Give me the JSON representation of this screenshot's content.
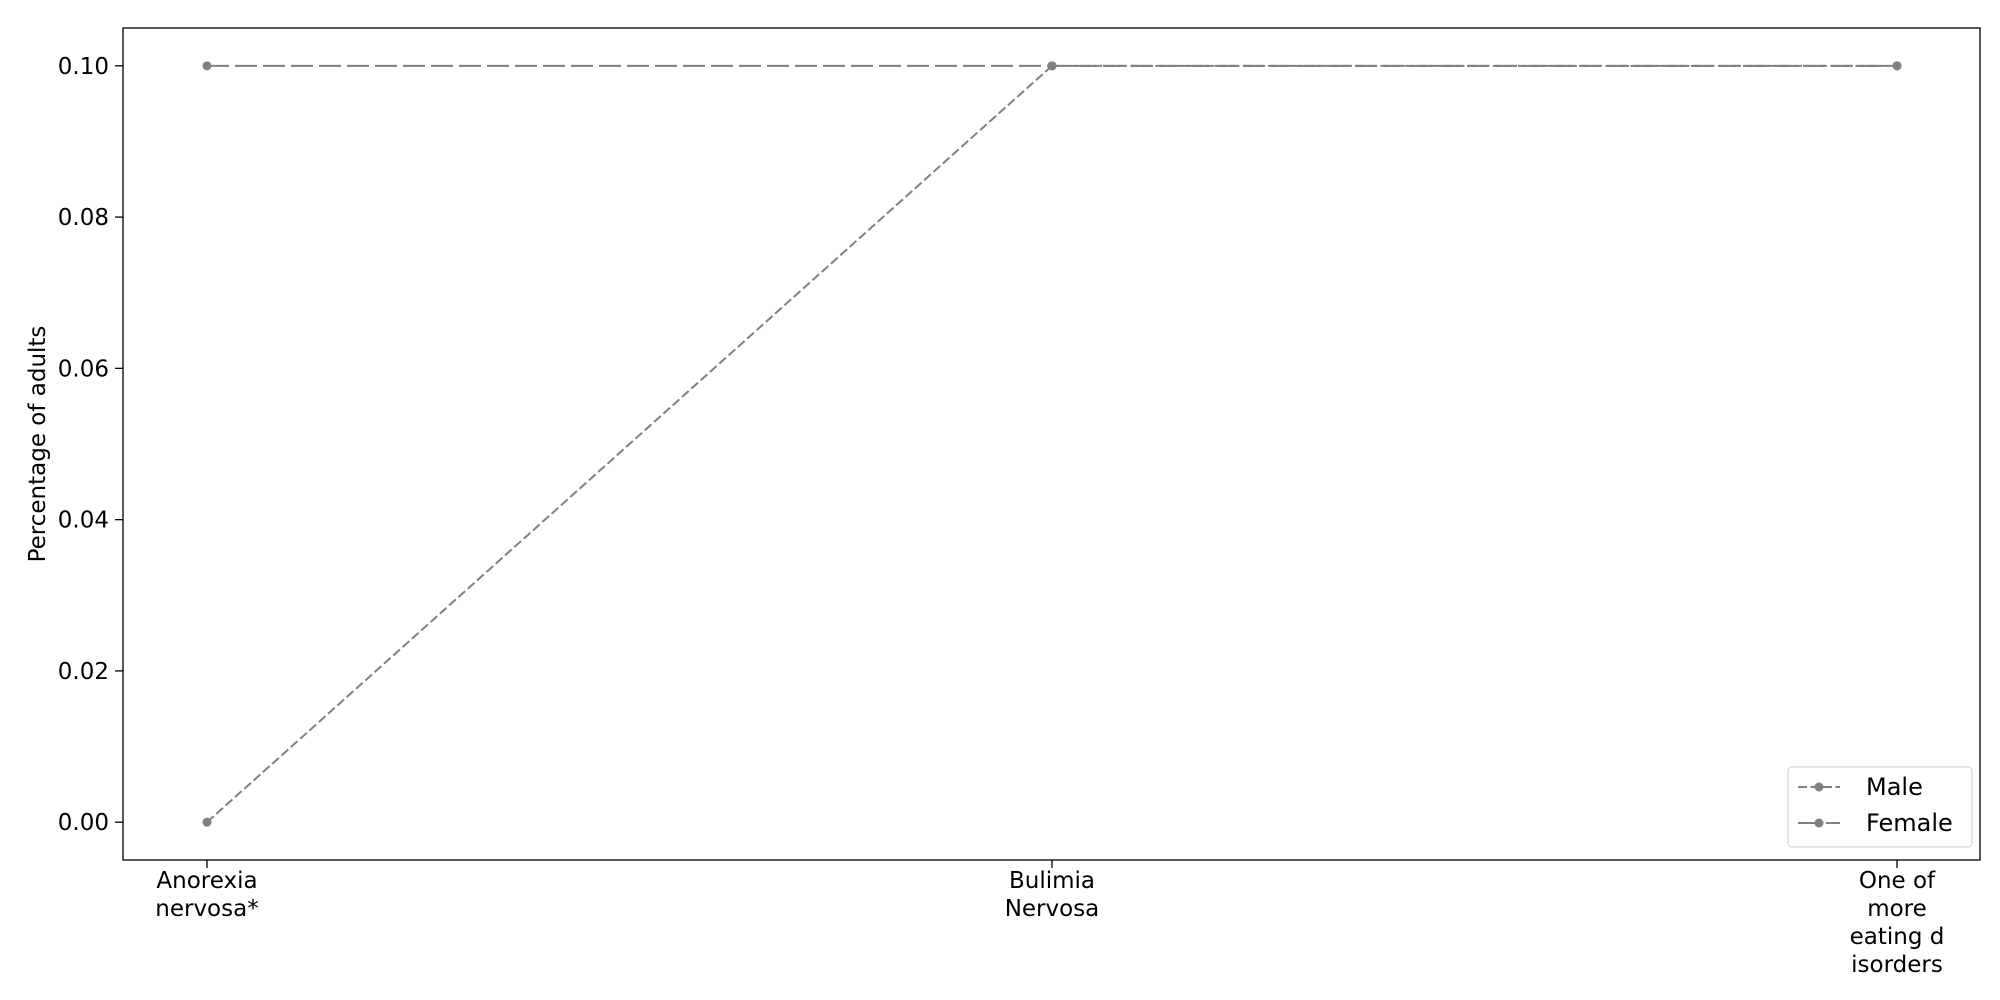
{
  "chart_data": {
    "type": "line",
    "title": "",
    "xlabel": "",
    "ylabel": "Percentage of adults",
    "categories": [
      [
        "Anorexia",
        "nervosa*"
      ],
      [
        "Bulimia",
        "Nervosa"
      ],
      [
        "One of",
        "more",
        "eating d",
        "isorders"
      ]
    ],
    "ylim": [
      -0.005,
      0.105
    ],
    "yticks": [
      0.0,
      0.02,
      0.04,
      0.06,
      0.08,
      0.1
    ],
    "ytick_labels": [
      "0.00",
      "0.02",
      "0.04",
      "0.06",
      "0.08",
      "0.10"
    ],
    "grid": false,
    "legend_position": "lower-right",
    "series": [
      {
        "name": "Male",
        "values": [
          0.0,
          0.1,
          0.1
        ],
        "color": "#808080",
        "line_style": "short-dash",
        "marker": "circle"
      },
      {
        "name": "Female",
        "values": [
          0.1,
          0.1,
          0.1
        ],
        "color": "#808080",
        "line_style": "long-dash",
        "marker": "circle"
      }
    ]
  }
}
